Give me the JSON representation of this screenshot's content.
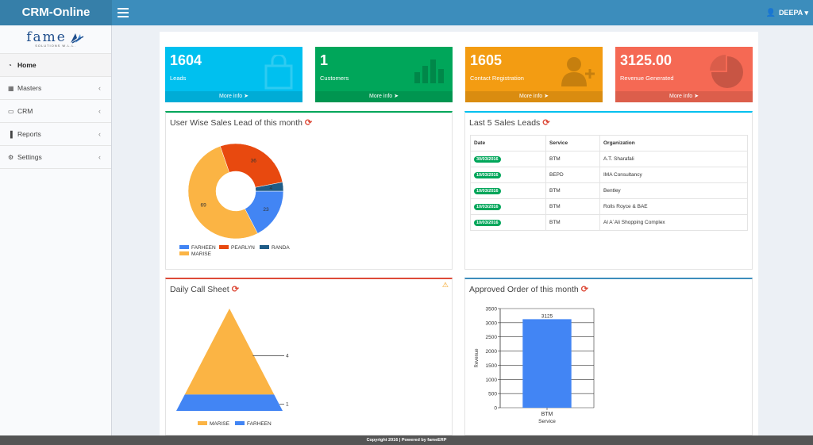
{
  "app": {
    "title": "CRM-Online"
  },
  "header": {
    "user": "DEEPA"
  },
  "logo": {
    "text": "fame",
    "sub": "SOLUTIONS W.L.L."
  },
  "sidebar": {
    "items": [
      {
        "label": "Home",
        "icon": "dashboard-icon",
        "active": true
      },
      {
        "label": "Masters",
        "icon": "grid-icon"
      },
      {
        "label": "CRM",
        "icon": "laptop-icon"
      },
      {
        "label": "Reports",
        "icon": "bar-chart-icon"
      },
      {
        "label": "Settings",
        "icon": "gears-icon"
      }
    ]
  },
  "infoboxes": [
    {
      "value": "1604",
      "label": "Leads",
      "more": "More info",
      "color": "#00c0ef",
      "icon": "shopping-bag-icon"
    },
    {
      "value": "1",
      "label": "Customers",
      "more": "More info",
      "color": "#00a65a",
      "icon": "bar-chart-icon"
    },
    {
      "value": "1605",
      "label": "Contact Registration",
      "more": "More info",
      "color": "#f39c12",
      "icon": "user-plus-icon"
    },
    {
      "value": "3125.00",
      "label": "Revenue Generated",
      "more": "More info",
      "color": "#f56954",
      "icon": "pie-chart-icon"
    }
  ],
  "panels": {
    "sales_lead": {
      "title": "User Wise Sales Lead of this month"
    },
    "last5": {
      "title": "Last 5 Sales Leads",
      "columns": [
        "Date",
        "Service",
        "Organization"
      ],
      "rows": [
        [
          "30/03/2016",
          "BTM",
          "A.T. Sharafali"
        ],
        [
          "10/03/2016",
          "BEPD",
          "IMA Consultancy"
        ],
        [
          "10/03/2016",
          "BTM",
          "Bentley"
        ],
        [
          "10/03/2016",
          "BTM",
          "Rolls Royce & BAE"
        ],
        [
          "10/03/2016",
          "BTM",
          "Al A`Ali Shopping Complex"
        ]
      ]
    },
    "call_sheet": {
      "title": "Daily Call Sheet"
    },
    "approved": {
      "title": "Approved Order of this month"
    }
  },
  "footer": {
    "text": "Copyright 2016 | Powered by fameERP"
  },
  "chart_data": [
    {
      "type": "pie",
      "subtype": "donut",
      "title": "User Wise Sales Lead of this month",
      "slices": [
        {
          "name": "FARHEEN",
          "value": 23,
          "color": "#4285f4"
        },
        {
          "name": "MARISE",
          "value": 69,
          "color": "#fbb444"
        },
        {
          "name": "PEARLYN",
          "value": 36,
          "color": "#e8490f"
        },
        {
          "name": "RANDA",
          "value": 4,
          "color": "#1f5c87"
        }
      ],
      "legend": "bottom"
    },
    {
      "type": "pyramid",
      "title": "Daily Call Sheet",
      "slices": [
        {
          "name": "MARISE",
          "value": 4,
          "color": "#fbb444"
        },
        {
          "name": "FARHEEN",
          "value": 1,
          "color": "#4285f4"
        }
      ],
      "legend": "bottom"
    },
    {
      "type": "bar",
      "title": "Approved Order of this month",
      "categories": [
        "BTM"
      ],
      "values": [
        3125
      ],
      "xlabel": "Service",
      "ylabel": "Revenue",
      "ylim": [
        0,
        3500
      ],
      "yticks": [
        0,
        500,
        1000,
        1500,
        2000,
        2500,
        3000,
        3500
      ],
      "color": "#4285f4",
      "grid": true
    }
  ]
}
